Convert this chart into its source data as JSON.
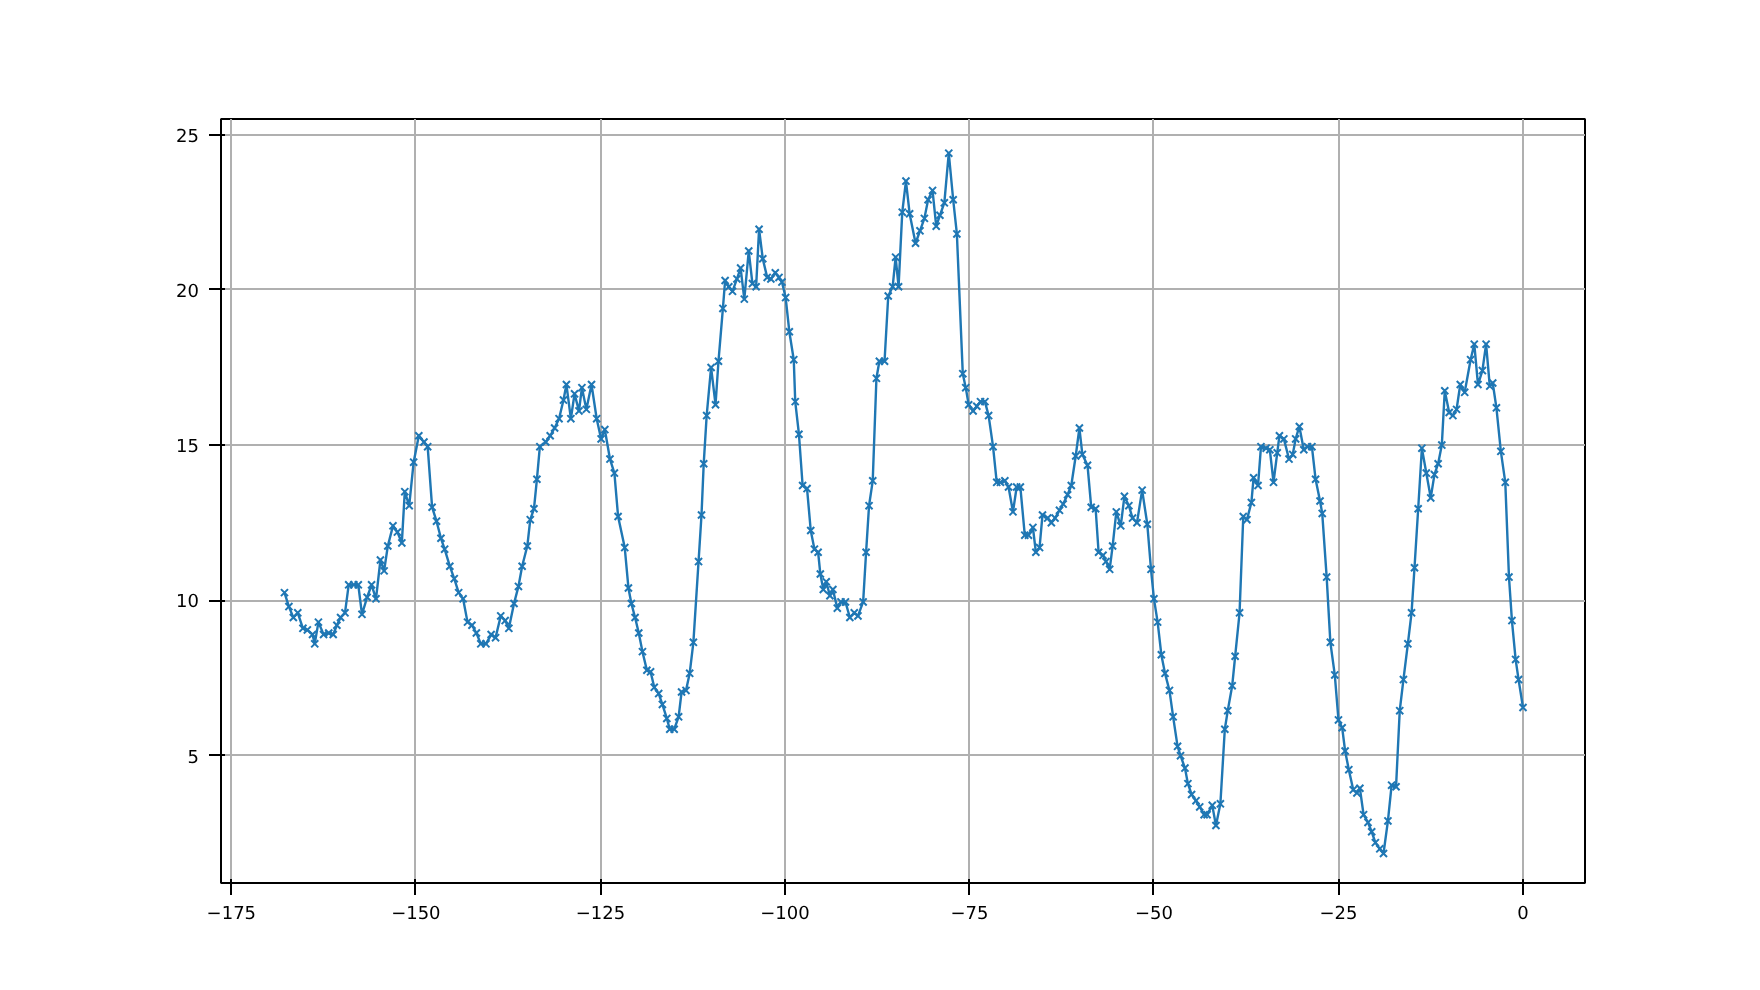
{
  "chart_data": {
    "type": "line",
    "marker": "cross",
    "line_style": "solid",
    "grid": true,
    "xlim": [
      -176.4,
      8.4
    ],
    "ylim": [
      0.9,
      25.5
    ],
    "xticks": [
      {
        "value": -175,
        "label": "−175"
      },
      {
        "value": -150,
        "label": "−150"
      },
      {
        "value": -125,
        "label": "−125"
      },
      {
        "value": -100,
        "label": "−100"
      },
      {
        "value": -75,
        "label": "−75"
      },
      {
        "value": -50,
        "label": "−50"
      },
      {
        "value": -25,
        "label": "−25"
      },
      0
    ],
    "yticks": [
      5,
      10,
      15,
      20,
      25
    ],
    "series": [
      {
        "color": "#1f77b4",
        "x": [
          -167.8,
          -167.2,
          -166.6,
          -166,
          -165.3,
          -164.7,
          -164,
          -163.7,
          -163.2,
          -162.5,
          -161.8,
          -161.2,
          -160.7,
          -160.2,
          -159.6,
          -159.1,
          -158.4,
          -157.8,
          -157.3,
          -156.6,
          -156,
          -155.4,
          -154.8,
          -154.3,
          -153.8,
          -153.1,
          -152.5,
          -151.9,
          -151.5,
          -150.9,
          -150.3,
          -149.6,
          -148.9,
          -148.4,
          -147.8,
          -147.2,
          -146.6,
          -146.1,
          -145.4,
          -144.8,
          -144.2,
          -143.6,
          -143,
          -142.4,
          -141.8,
          -141.2,
          -140.5,
          -139.8,
          -139.2,
          -138.5,
          -137.9,
          -137.4,
          -136.7,
          -136.1,
          -135.6,
          -134.9,
          -134.5,
          -134,
          -133.6,
          -133.2,
          -132.4,
          -131.8,
          -131.2,
          -130.6,
          -130,
          -129.6,
          -129,
          -128.5,
          -127.9,
          -127.5,
          -126.9,
          -126.2,
          -125.5,
          -124.9,
          -124.4,
          -123.7,
          -123.1,
          -122.6,
          -121.7,
          -121.2,
          -120.8,
          -120.3,
          -119.8,
          -119.3,
          -118.7,
          -118.2,
          -117.7,
          -117.1,
          -116.6,
          -116,
          -115.6,
          -115,
          -114.4,
          -114,
          -113.4,
          -112.9,
          -112.4,
          -111.7,
          -111.3,
          -111,
          -110.6,
          -110,
          -109.4,
          -109,
          -108.4,
          -108.1,
          -107.6,
          -107.1,
          -106.5,
          -106,
          -105.5,
          -104.9,
          -104.4,
          -103.9,
          -103.5,
          -103,
          -102.4,
          -101.9,
          -101.3,
          -100.8,
          -100.4,
          -99.9,
          -99.4,
          -98.8,
          -98.6,
          -98.1,
          -97.6,
          -97,
          -96.5,
          -96,
          -95.5,
          -95.2,
          -94.8,
          -94.4,
          -93.9,
          -93.5,
          -92.9,
          -92.4,
          -91.8,
          -91.2,
          -90.6,
          -90.1,
          -89.4,
          -89,
          -88.6,
          -88.1,
          -87.6,
          -87.2,
          -86.5,
          -86,
          -85.4,
          -85,
          -84.6,
          -84.1,
          -83.6,
          -83.1,
          -82.3,
          -81.7,
          -81.1,
          -80.6,
          -80,
          -79.5,
          -79,
          -78.4,
          -77.8,
          -77.2,
          -76.7,
          -75.9,
          -75.5,
          -75.1,
          -74.5,
          -74,
          -73.5,
          -72.9,
          -72.4,
          -71.8,
          -71.3,
          -70.8,
          -70.2,
          -69.7,
          -69.1,
          -68.6,
          -68.1,
          -67.5,
          -67,
          -66.4,
          -66,
          -65.5,
          -65.1,
          -64.4,
          -63.9,
          -63.4,
          -62.8,
          -62.3,
          -61.7,
          -61.2,
          -60.6,
          -60.1,
          -59.7,
          -59,
          -58.5,
          -57.9,
          -57.5,
          -56.9,
          -56.5,
          -56,
          -55.6,
          -55.1,
          -54.5,
          -54,
          -53.4,
          -52.9,
          -52.3,
          -51.6,
          -50.9,
          -50.4,
          -50,
          -49.5,
          -49,
          -48.5,
          -47.9,
          -47.4,
          -46.8,
          -46.4,
          -45.8,
          -45.4,
          -44.9,
          -44.3,
          -43.8,
          -43.2,
          -42.8,
          -42.1,
          -41.6,
          -41,
          -40.4,
          -40,
          -39.4,
          -39,
          -38.4,
          -37.9,
          -37.4,
          -36.8,
          -36.5,
          -35.9,
          -35.5,
          -34.8,
          -34.3,
          -33.8,
          -33.3,
          -33,
          -32.4,
          -31.7,
          -31.2,
          -30.8,
          -30.3,
          -29.7,
          -29.2,
          -28.6,
          -28.1,
          -27.5,
          -27.2,
          -26.6,
          -26.1,
          -25.5,
          -25,
          -24.5,
          -24.1,
          -23.6,
          -23,
          -22.5,
          -22.1,
          -21.6,
          -21,
          -20.5,
          -20,
          -19.4,
          -18.9,
          -18.3,
          -17.8,
          -17.2,
          -16.7,
          -16.2,
          -15.6,
          -15.1,
          -14.7,
          -14.2,
          -13.7,
          -13.1,
          -12.5,
          -12,
          -11.5,
          -11,
          -10.6,
          -10,
          -9.5,
          -9,
          -8.5,
          -7.9,
          -7.1,
          -6.6,
          -6.1,
          -5.5,
          -5,
          -4.5,
          -4.1,
          -3.6,
          -3,
          -2.4,
          -1.9,
          -1.5,
          -1,
          -0.6,
          0
        ],
        "values": [
          10.25,
          9.8,
          9.45,
          9.6,
          9.1,
          9.05,
          8.9,
          8.6,
          9.3,
          8.9,
          8.95,
          8.9,
          9.2,
          9.45,
          9.6,
          10.5,
          10.5,
          10.5,
          9.55,
          10.1,
          10.5,
          10.05,
          11.3,
          10.95,
          11.75,
          12.4,
          12.2,
          11.85,
          13.5,
          13.05,
          14.45,
          15.3,
          15.1,
          14.95,
          13,
          12.55,
          12,
          11.65,
          11.1,
          10.7,
          10.25,
          10.05,
          9.3,
          9.2,
          8.95,
          8.6,
          8.6,
          8.9,
          8.8,
          9.5,
          9.35,
          9.1,
          9.9,
          10.45,
          11.1,
          11.75,
          12.6,
          12.95,
          13.9,
          14.95,
          15.1,
          15.3,
          15.55,
          15.85,
          16.45,
          16.95,
          15.85,
          16.65,
          16.1,
          16.85,
          16.15,
          16.95,
          15.85,
          15.2,
          15.5,
          14.55,
          14.1,
          12.7,
          11.7,
          10.4,
          9.9,
          9.45,
          8.95,
          8.35,
          7.75,
          7.7,
          7.2,
          7,
          6.65,
          6.2,
          5.85,
          5.85,
          6.25,
          7.05,
          7.1,
          7.65,
          8.65,
          11.25,
          12.75,
          14.4,
          15.95,
          17.5,
          16.3,
          17.7,
          19.4,
          20.3,
          20.1,
          19.95,
          20.35,
          20.7,
          19.7,
          21.25,
          20.2,
          20.1,
          21.95,
          21,
          20.4,
          20.35,
          20.55,
          20.4,
          20.25,
          19.75,
          18.65,
          17.75,
          16.4,
          15.35,
          13.7,
          13.6,
          12.25,
          11.65,
          11.55,
          10.85,
          10.35,
          10.6,
          10.15,
          10.35,
          9.75,
          9.95,
          9.95,
          9.45,
          9.6,
          9.5,
          9.95,
          11.55,
          13.05,
          13.85,
          17.15,
          17.7,
          17.7,
          19.8,
          20.1,
          21.05,
          20.1,
          22.5,
          23.5,
          22.45,
          21.5,
          21.9,
          22.3,
          22.9,
          23.2,
          22.05,
          22.4,
          22.8,
          24.4,
          22.9,
          21.8,
          17.3,
          16.85,
          16.3,
          16.1,
          16.25,
          16.4,
          16.4,
          15.95,
          14.95,
          13.8,
          13.8,
          13.85,
          13.65,
          12.85,
          13.65,
          13.65,
          12.1,
          12.1,
          12.35,
          11.55,
          11.7,
          12.75,
          12.65,
          12.5,
          12.65,
          12.9,
          13.1,
          13.4,
          13.7,
          14.65,
          15.55,
          14.7,
          14.35,
          13,
          12.95,
          11.55,
          11.45,
          11.25,
          11,
          11.75,
          12.85,
          12.4,
          13.35,
          13.05,
          12.65,
          12.5,
          13.55,
          12.45,
          11,
          10.05,
          9.3,
          8.25,
          7.65,
          7.1,
          6.25,
          5.3,
          5,
          4.6,
          4.1,
          3.75,
          3.55,
          3.35,
          3.1,
          3.1,
          3.4,
          2.75,
          3.45,
          5.85,
          6.45,
          7.25,
          8.2,
          9.6,
          12.7,
          12.6,
          13.15,
          13.95,
          13.7,
          14.95,
          14.9,
          14.85,
          13.8,
          14.75,
          15.3,
          15.2,
          14.55,
          14.7,
          15.2,
          15.6,
          14.85,
          14.95,
          14.95,
          13.9,
          13.2,
          12.8,
          10.75,
          8.65,
          7.6,
          6.15,
          5.9,
          5.15,
          4.55,
          3.9,
          3.8,
          3.95,
          3.1,
          2.85,
          2.55,
          2.2,
          2,
          1.85,
          2.9,
          4.05,
          4,
          6.45,
          7.45,
          8.6,
          9.6,
          11.05,
          12.95,
          14.9,
          14.1,
          13.3,
          14.05,
          14.4,
          15,
          16.75,
          16.05,
          15.95,
          16.15,
          16.95,
          16.7,
          17.75,
          18.25,
          16.95,
          17.4,
          18.25,
          16.9,
          17,
          16.2,
          14.8,
          13.8,
          10.75,
          9.35,
          8.1,
          7.45,
          6.55
        ]
      }
    ]
  }
}
